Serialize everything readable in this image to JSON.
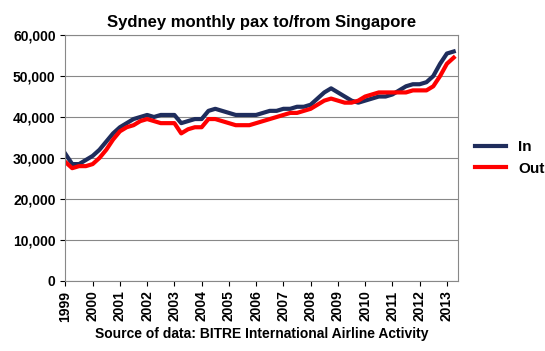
{
  "chart_data": {
    "type": "line",
    "title": "Sydney monthly pax to/from Singapore",
    "x_label": "Source of data: BITRE International Airline Activity",
    "x": [
      1999.0,
      1999.25,
      1999.5,
      1999.75,
      2000.0,
      2000.25,
      2000.5,
      2000.75,
      2001.0,
      2001.25,
      2001.5,
      2001.75,
      2002.0,
      2002.25,
      2002.5,
      2002.75,
      2003.0,
      2003.25,
      2003.5,
      2003.75,
      2004.0,
      2004.25,
      2004.5,
      2004.75,
      2005.0,
      2005.25,
      2005.5,
      2005.75,
      2006.0,
      2006.25,
      2006.5,
      2006.75,
      2007.0,
      2007.25,
      2007.5,
      2007.75,
      2008.0,
      2008.25,
      2008.5,
      2008.75,
      2009.0,
      2009.25,
      2009.5,
      2009.75,
      2010.0,
      2010.25,
      2010.5,
      2010.75,
      2011.0,
      2011.25,
      2011.5,
      2011.75,
      2012.0,
      2012.25,
      2012.5,
      2012.75,
      2013.0,
      2013.25
    ],
    "series": [
      {
        "name": "In",
        "color": "#1f2d5c",
        "values": [
          31000,
          28500,
          28500,
          29500,
          30500,
          32000,
          34000,
          36000,
          37500,
          38500,
          39500,
          40000,
          40500,
          40000,
          40500,
          40500,
          40500,
          38500,
          39000,
          39500,
          39500,
          41500,
          42000,
          41500,
          41000,
          40500,
          40500,
          40500,
          40500,
          41000,
          41500,
          41500,
          42000,
          42000,
          42500,
          42500,
          43000,
          44500,
          46000,
          47000,
          46000,
          45000,
          44000,
          43500,
          44000,
          44500,
          45000,
          45000,
          45500,
          46500,
          47500,
          48000,
          48000,
          48500,
          50000,
          53000,
          55500,
          56000
        ]
      },
      {
        "name": "Out",
        "color": "#ff0000",
        "values": [
          29000,
          27500,
          28000,
          28000,
          28500,
          30000,
          32000,
          34500,
          36500,
          37500,
          38000,
          39000,
          39500,
          39000,
          38500,
          38500,
          38500,
          36000,
          37000,
          37500,
          37500,
          39500,
          39500,
          39000,
          38500,
          38000,
          38000,
          38000,
          38500,
          39000,
          39500,
          40000,
          40500,
          41000,
          41000,
          41500,
          42000,
          43000,
          44000,
          44500,
          44000,
          43500,
          43500,
          44000,
          45000,
          45500,
          46000,
          46000,
          46000,
          46000,
          46000,
          46500,
          46500,
          46500,
          47500,
          50000,
          53000,
          54500
        ]
      }
    ],
    "xlim": [
      1999,
      2013.4
    ],
    "xticks": [
      1999,
      2000,
      2001,
      2002,
      2003,
      2004,
      2005,
      2006,
      2007,
      2008,
      2009,
      2010,
      2011,
      2012,
      2013
    ],
    "ylim": [
      0,
      60000
    ],
    "yticks": [
      0,
      {
        "value": 10000,
        "label": "10,000"
      },
      {
        "value": 20000,
        "label": "20,000"
      },
      {
        "value": 30000,
        "label": "30,000"
      },
      {
        "value": 40000,
        "label": "40,000"
      },
      {
        "value": 50000,
        "label": "50,000"
      },
      {
        "value": 60000,
        "label": "60,000"
      }
    ],
    "grid": true,
    "legend": "right"
  }
}
